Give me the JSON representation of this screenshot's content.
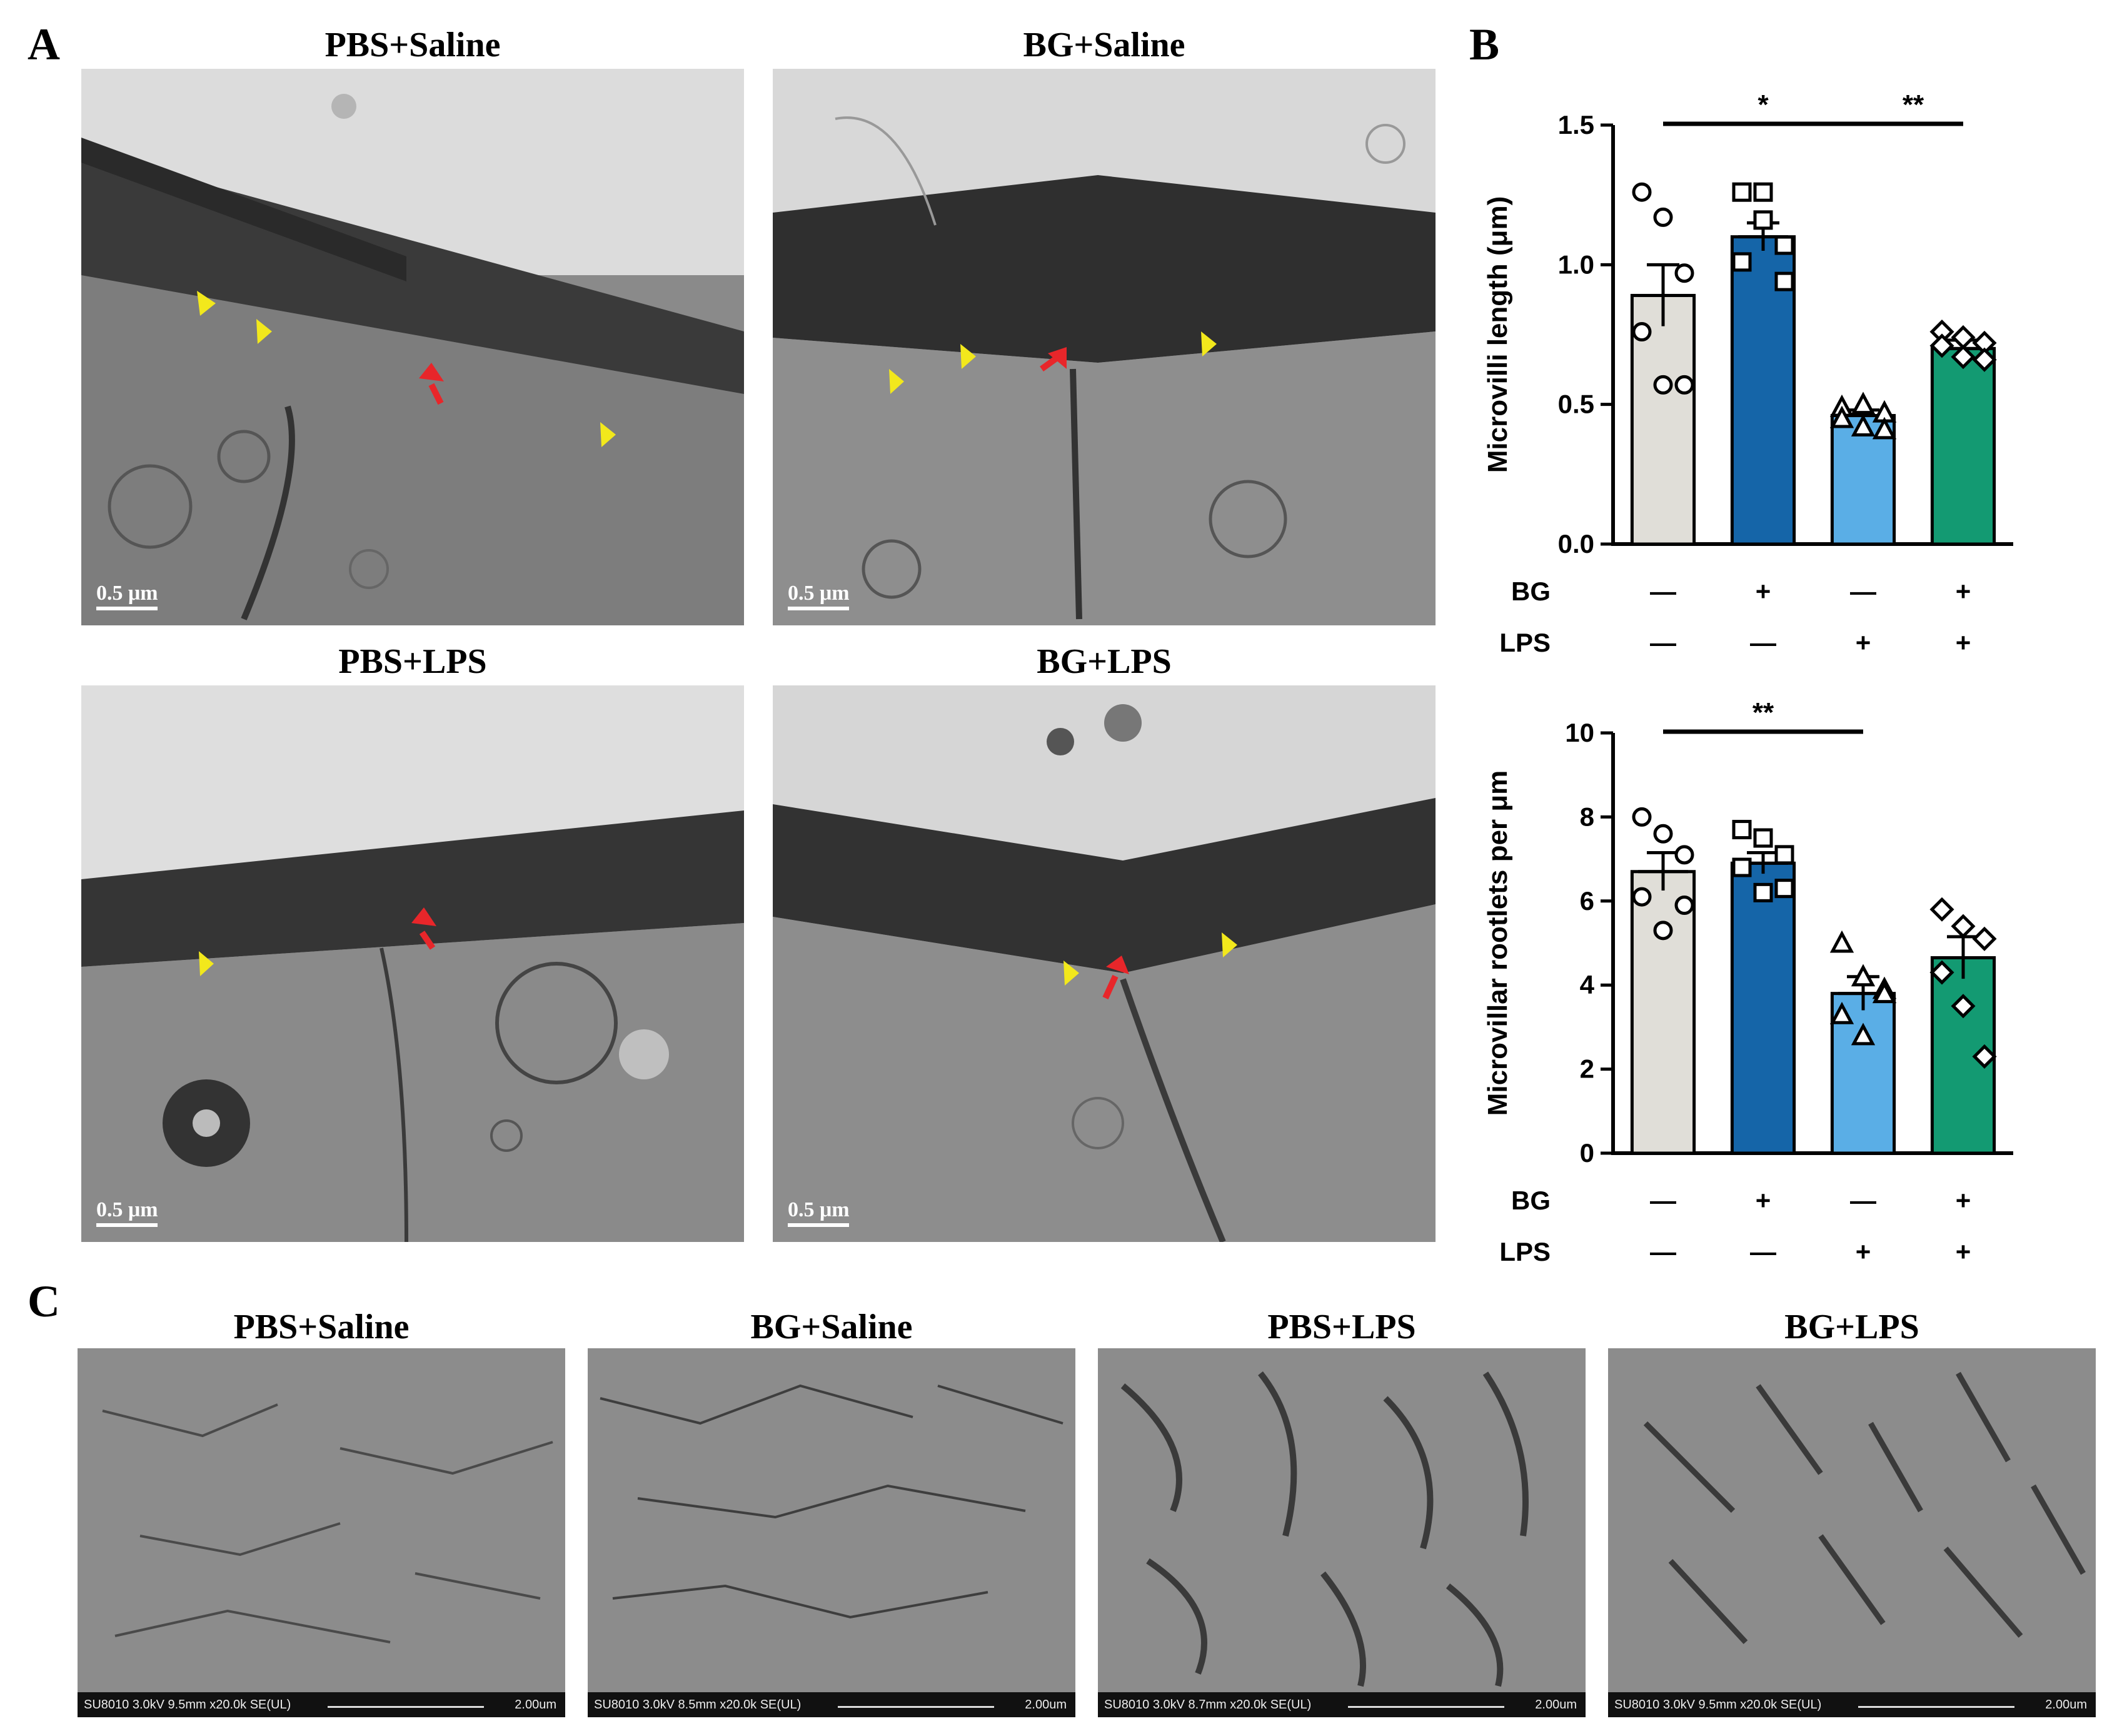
{
  "panels": {
    "A": {
      "label": "A",
      "titles": [
        "PBS+Saline",
        "BG+Saline",
        "PBS+LPS",
        "BG+LPS"
      ],
      "scale": "0.5 μm"
    },
    "B": {
      "label": "B"
    },
    "C": {
      "label": "C",
      "titles": [
        "PBS+Saline",
        "BG+Saline",
        "PBS+LPS",
        "BG+LPS"
      ],
      "footers": [
        "SU8010 3.0kV 9.5mm x20.0k SE(UL)",
        "SU8010 3.0kV 8.5mm x20.0k SE(UL)",
        "SU8010 3.0kV 8.7mm x20.0k SE(UL)",
        "SU8010 3.0kV 9.5mm x20.0k SE(UL)"
      ],
      "scale": "2.00um"
    }
  },
  "colors": {
    "groups": [
      "#e0ded8",
      "#1565a8",
      "#5aaee6",
      "#139a72"
    ],
    "arrow": "#e8262a",
    "arrowhead": "#f2e81c"
  },
  "chart_data": [
    {
      "type": "bar",
      "ylabel": "Microvilli length (μm)",
      "ylim": [
        0,
        1.5
      ],
      "yticks": [
        "0.0",
        "0.5",
        "1.0",
        "1.5"
      ],
      "rows": [
        {
          "label": "BG",
          "signs": [
            "—",
            "+",
            "—",
            "+"
          ]
        },
        {
          "label": "LPS",
          "signs": [
            "—",
            "—",
            "+",
            "+"
          ]
        }
      ],
      "markers": [
        "circle",
        "square",
        "triangle",
        "diamond"
      ],
      "values": [
        0.89,
        1.1,
        0.46,
        0.7
      ],
      "sem": [
        0.11,
        0.05,
        0.02,
        0.03
      ],
      "points": [
        [
          1.26,
          1.17,
          0.97,
          0.76,
          0.57,
          0.57
        ],
        [
          1.26,
          1.26,
          1.07,
          1.01,
          1.16,
          0.94
        ],
        [
          0.49,
          0.5,
          0.47,
          0.45,
          0.42,
          0.41
        ],
        [
          0.76,
          0.74,
          0.72,
          0.71,
          0.67,
          0.66
        ]
      ],
      "significance": [
        {
          "from": 0,
          "to": 2,
          "label": "*"
        },
        {
          "from": 2,
          "to": 3,
          "label": "**"
        }
      ]
    },
    {
      "type": "bar",
      "ylabel": "Microvillar rootlets per μm",
      "ylim": [
        0,
        10
      ],
      "yticks": [
        "0",
        "2",
        "4",
        "6",
        "8",
        "10"
      ],
      "rows": [
        {
          "label": "BG",
          "signs": [
            "—",
            "+",
            "—",
            "+"
          ]
        },
        {
          "label": "LPS",
          "signs": [
            "—",
            "—",
            "+",
            "+"
          ]
        }
      ],
      "markers": [
        "circle",
        "square",
        "triangle",
        "diamond"
      ],
      "values": [
        6.7,
        6.9,
        3.8,
        4.65
      ],
      "sem": [
        0.45,
        0.25,
        0.4,
        0.5
      ],
      "points": [
        [
          8.0,
          7.6,
          7.1,
          6.1,
          5.3,
          5.9
        ],
        [
          7.7,
          7.5,
          7.1,
          6.8,
          6.2,
          6.3
        ],
        [
          5.0,
          4.2,
          3.9,
          3.3,
          2.8,
          3.8
        ],
        [
          5.8,
          5.4,
          5.1,
          4.3,
          3.5,
          2.3
        ]
      ],
      "significance": [
        {
          "from": 0,
          "to": 2,
          "label": "**"
        }
      ]
    }
  ]
}
